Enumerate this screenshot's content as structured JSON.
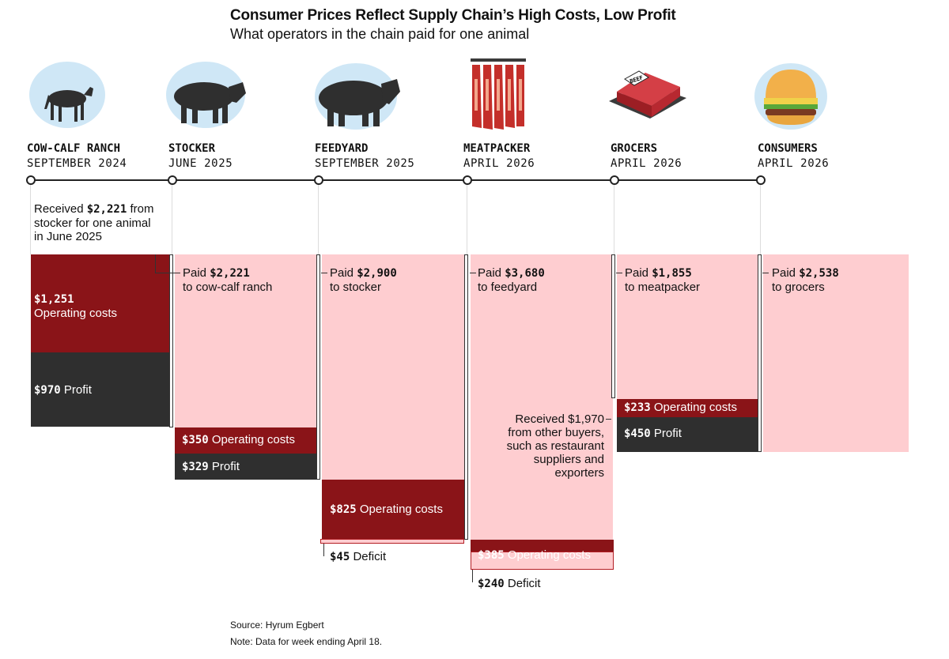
{
  "title": "Consumer Prices Reflect Supply Chain’s High Costs, Low Profit",
  "subtitle": "What operators in the chain paid for one animal",
  "stages": [
    {
      "name": "COW-CALF RANCH",
      "date": "SEPTEMBER 2024",
      "icon": "calf-icon"
    },
    {
      "name": "STOCKER",
      "date": "JUNE 2025",
      "icon": "steer-icon"
    },
    {
      "name": "FEEDYARD",
      "date": "SEPTEMBER 2025",
      "icon": "cattle-icon"
    },
    {
      "name": "MEATPACKER",
      "date": "APRIL 2026",
      "icon": "meat-carcass-icon"
    },
    {
      "name": "GROCERS",
      "date": "APRIL 2026",
      "icon": "beef-package-icon"
    },
    {
      "name": "CONSUMERS",
      "date": "APRIL 2026",
      "icon": "burger-icon"
    }
  ],
  "colors": {
    "payment": "#fecdd0",
    "operating_costs": "#8a1418",
    "profit": "#2f2f2f",
    "icon_bg": "#cfe7f6"
  },
  "chart_data": {
    "type": "table",
    "title": "Consumer Prices Reflect Supply Chain’s High Costs, Low Profit",
    "subtitle": "What operators in the chain paid for one animal",
    "rows": [
      {
        "stage": "Cow-calf ranch",
        "received": 2221,
        "operating_costs": 1251,
        "profit": 970
      },
      {
        "stage": "Stocker",
        "paid": 2221,
        "paid_to": "cow-calf ranch",
        "operating_costs": 350,
        "profit": 329
      },
      {
        "stage": "Feedyard",
        "paid": 2900,
        "paid_to": "stocker",
        "operating_costs": 825,
        "deficit": 45
      },
      {
        "stage": "Meatpacker",
        "paid": 3680,
        "paid_to": "feedyard",
        "other_revenue": 1970,
        "operating_costs": 385,
        "deficit": 240
      },
      {
        "stage": "Grocers",
        "paid": 1855,
        "paid_to": "meatpacker",
        "operating_costs": 233,
        "profit": 450
      },
      {
        "stage": "Consumers",
        "paid": 2538,
        "paid_to": "grocers"
      }
    ]
  },
  "labels": {
    "ranch_received_a": "Received ",
    "ranch_received_num": "$2,221",
    "ranch_received_b": " from",
    "ranch_received_c": "stocker for one animal",
    "ranch_received_d": "in June 2025",
    "ranch_op_num": "$1,251",
    "ranch_op_text": "Operating costs",
    "ranch_profit_num": "$970",
    "ranch_profit_text": " Profit",
    "stocker_paid_a": "Paid ",
    "stocker_paid_num": "$2,221",
    "stocker_paid_to": "to cow-calf ranch",
    "stocker_op_num": "$350",
    "stocker_op_text": " Operating costs",
    "stocker_profit_num": "$329",
    "stocker_profit_text": " Profit",
    "feedyard_paid_a": "Paid ",
    "feedyard_paid_num": "$2,900",
    "feedyard_paid_to": "to stocker",
    "feedyard_op_num": "$825",
    "feedyard_op_text": " Operating costs",
    "feedyard_def_num": "$45",
    "feedyard_def_text": " Deficit",
    "meat_paid_a": "Paid ",
    "meat_paid_num": "$3,680",
    "meat_paid_to": "to feedyard",
    "meat_other_1": "Received $1,970",
    "meat_other_2": "from other buyers,",
    "meat_other_3": "such as restaurant",
    "meat_other_4": "suppliers and",
    "meat_other_5": "exporters",
    "meat_op_num": "$385",
    "meat_op_text": " Operating costs",
    "meat_def_num": "$240",
    "meat_def_text": " Deficit",
    "grocer_paid_a": "Paid ",
    "grocer_paid_num": "$1,855",
    "grocer_paid_to": "to meatpacker",
    "grocer_op_num": "$233",
    "grocer_op_text": " Operating costs",
    "grocer_profit_num": "$450",
    "grocer_profit_text": " Profit",
    "consumer_paid_a": "Paid ",
    "consumer_paid_num": "$2,538",
    "consumer_paid_to": "to grocers",
    "beef_label": "BEEF"
  },
  "source": "Source: Hyrum Egbert",
  "note": "Note: Data for week ending April 18."
}
